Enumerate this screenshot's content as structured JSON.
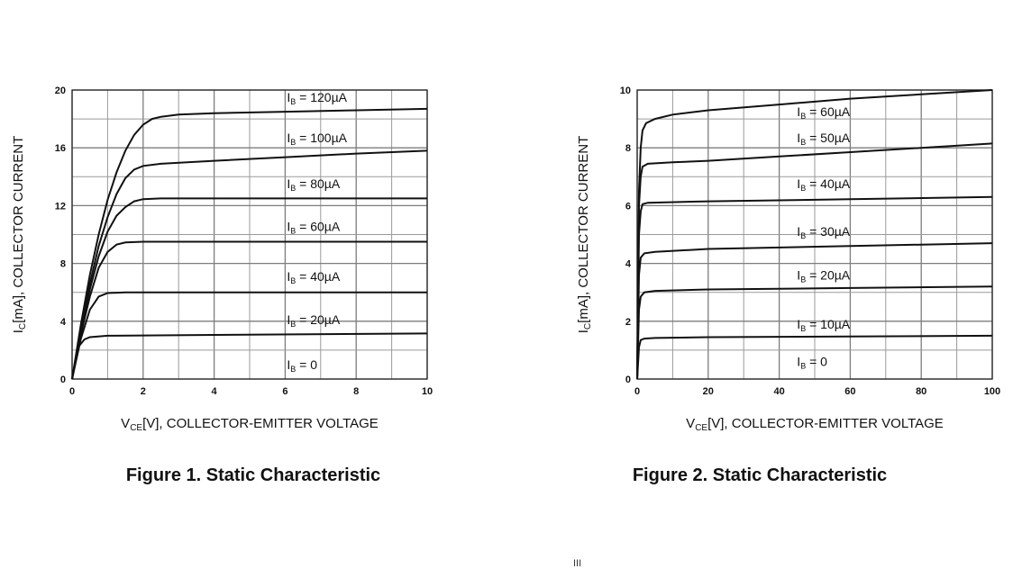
{
  "chart_data": [
    {
      "type": "line",
      "caption": "Figure 1. Static Characteristic",
      "ylabel": {
        "pre": "I",
        "sub": "C",
        "post": "[mA], COLLECTOR CURRENT"
      },
      "xlabel": {
        "pre": "V",
        "sub": "CE",
        "post": "[V], COLLECTOR-EMITTER VOLTAGE"
      },
      "xlim": [
        0,
        10
      ],
      "ylim": [
        0,
        20
      ],
      "xticks": [
        0,
        2,
        4,
        6,
        8,
        10
      ],
      "yticks": [
        0,
        4,
        8,
        12,
        16,
        20
      ],
      "x_minor_step": 1,
      "y_minor_step": 2,
      "grid": true,
      "series": [
        {
          "name": "I_B = 120µA",
          "label": {
            "pre": "I",
            "sub": "B",
            "post": " = 120µA"
          },
          "points": [
            [
              0,
              0
            ],
            [
              0.25,
              3.8
            ],
            [
              0.5,
              7.2
            ],
            [
              0.75,
              10.0
            ],
            [
              1.0,
              12.4
            ],
            [
              1.25,
              14.3
            ],
            [
              1.5,
              15.8
            ],
            [
              1.75,
              16.9
            ],
            [
              2.0,
              17.6
            ],
            [
              2.25,
              18.0
            ],
            [
              2.5,
              18.15
            ],
            [
              3.0,
              18.3
            ],
            [
              4.0,
              18.4
            ],
            [
              6.0,
              18.5
            ],
            [
              8.0,
              18.6
            ],
            [
              10.0,
              18.7
            ]
          ]
        },
        {
          "name": "I_B = 100µA",
          "label": {
            "pre": "I",
            "sub": "B",
            "post": " = 100µA"
          },
          "points": [
            [
              0,
              0
            ],
            [
              0.25,
              3.5
            ],
            [
              0.5,
              6.6
            ],
            [
              0.75,
              9.2
            ],
            [
              1.0,
              11.2
            ],
            [
              1.25,
              12.8
            ],
            [
              1.5,
              13.9
            ],
            [
              1.75,
              14.5
            ],
            [
              2.0,
              14.75
            ],
            [
              2.5,
              14.9
            ],
            [
              4.0,
              15.1
            ],
            [
              6.0,
              15.35
            ],
            [
              8.0,
              15.6
            ],
            [
              10.0,
              15.8
            ]
          ]
        },
        {
          "name": "I_B = 80µA",
          "label": {
            "pre": "I",
            "sub": "B",
            "post": " = 80µA"
          },
          "points": [
            [
              0,
              0
            ],
            [
              0.25,
              3.3
            ],
            [
              0.5,
              6.2
            ],
            [
              0.75,
              8.5
            ],
            [
              1.0,
              10.2
            ],
            [
              1.25,
              11.3
            ],
            [
              1.5,
              11.9
            ],
            [
              1.75,
              12.3
            ],
            [
              2.0,
              12.45
            ],
            [
              2.5,
              12.5
            ],
            [
              4.0,
              12.5
            ],
            [
              10.0,
              12.5
            ]
          ]
        },
        {
          "name": "I_B = 60µA",
          "label": {
            "pre": "I",
            "sub": "B",
            "post": " = 60µA"
          },
          "points": [
            [
              0,
              0
            ],
            [
              0.25,
              3.1
            ],
            [
              0.5,
              5.7
            ],
            [
              0.75,
              7.7
            ],
            [
              1.0,
              8.8
            ],
            [
              1.25,
              9.3
            ],
            [
              1.5,
              9.45
            ],
            [
              2.0,
              9.5
            ],
            [
              10.0,
              9.5
            ]
          ]
        },
        {
          "name": "I_B = 40µA",
          "label": {
            "pre": "I",
            "sub": "B",
            "post": " = 40µA"
          },
          "points": [
            [
              0,
              0
            ],
            [
              0.25,
              2.8
            ],
            [
              0.5,
              4.8
            ],
            [
              0.75,
              5.7
            ],
            [
              1.0,
              5.95
            ],
            [
              1.5,
              6.0
            ],
            [
              10.0,
              6.0
            ]
          ]
        },
        {
          "name": "I_B = 20µA",
          "label": {
            "pre": "I",
            "sub": "B",
            "post": " = 20µA"
          },
          "points": [
            [
              0,
              0
            ],
            [
              0.1,
              1.4
            ],
            [
              0.2,
              2.3
            ],
            [
              0.35,
              2.75
            ],
            [
              0.5,
              2.9
            ],
            [
              1.0,
              3.0
            ],
            [
              4.0,
              3.05
            ],
            [
              10.0,
              3.15
            ]
          ]
        },
        {
          "name": "I_B = 0",
          "label": {
            "pre": "I",
            "sub": "B",
            "post": " = 0"
          },
          "points": []
        }
      ]
    },
    {
      "type": "line",
      "caption": "Figure 2. Static Characteristic",
      "ylabel": {
        "pre": "I",
        "sub": "C",
        "post": "[mA], COLLECTOR CURRENT"
      },
      "xlabel": {
        "pre": "V",
        "sub": "CE",
        "post": "[V], COLLECTOR-EMITTER VOLTAGE"
      },
      "xlim": [
        0,
        100
      ],
      "ylim": [
        0,
        10
      ],
      "xticks": [
        0,
        20,
        40,
        60,
        80,
        100
      ],
      "yticks": [
        0,
        2,
        4,
        6,
        8,
        10
      ],
      "x_minor_step": 10,
      "y_minor_step": 1,
      "grid": true,
      "series": [
        {
          "name": "I_B = 60µA",
          "label": {
            "pre": "I",
            "sub": "B",
            "post": " = 60µA"
          },
          "points": [
            [
              0,
              0
            ],
            [
              0.5,
              6.5
            ],
            [
              1.0,
              8.0
            ],
            [
              1.5,
              8.6
            ],
            [
              2.5,
              8.85
            ],
            [
              5,
              9.0
            ],
            [
              10,
              9.15
            ],
            [
              20,
              9.3
            ],
            [
              40,
              9.5
            ],
            [
              60,
              9.7
            ],
            [
              80,
              9.85
            ],
            [
              100,
              10.0
            ]
          ]
        },
        {
          "name": "I_B = 50µA",
          "label": {
            "pre": "I",
            "sub": "B",
            "post": " = 50µA"
          },
          "points": [
            [
              0,
              0
            ],
            [
              0.5,
              6.0
            ],
            [
              1.0,
              7.0
            ],
            [
              1.5,
              7.35
            ],
            [
              3,
              7.45
            ],
            [
              10,
              7.5
            ],
            [
              20,
              7.55
            ],
            [
              40,
              7.7
            ],
            [
              60,
              7.85
            ],
            [
              80,
              8.0
            ],
            [
              100,
              8.15
            ]
          ]
        },
        {
          "name": "I_B = 40µA",
          "label": {
            "pre": "I",
            "sub": "B",
            "post": " = 40µA"
          },
          "points": [
            [
              0,
              0
            ],
            [
              0.5,
              5.0
            ],
            [
              1.0,
              5.8
            ],
            [
              1.5,
              6.05
            ],
            [
              3,
              6.1
            ],
            [
              20,
              6.15
            ],
            [
              60,
              6.22
            ],
            [
              100,
              6.3
            ]
          ]
        },
        {
          "name": "I_B = 30µA",
          "label": {
            "pre": "I",
            "sub": "B",
            "post": " = 30µA"
          },
          "points": [
            [
              0,
              0
            ],
            [
              0.5,
              3.6
            ],
            [
              1.0,
              4.2
            ],
            [
              2,
              4.35
            ],
            [
              5,
              4.4
            ],
            [
              20,
              4.5
            ],
            [
              60,
              4.6
            ],
            [
              100,
              4.7
            ]
          ]
        },
        {
          "name": "I_B = 20µA",
          "label": {
            "pre": "I",
            "sub": "B",
            "post": " = 20µA"
          },
          "points": [
            [
              0,
              0
            ],
            [
              0.5,
              2.4
            ],
            [
              1.0,
              2.85
            ],
            [
              2,
              3.0
            ],
            [
              5,
              3.05
            ],
            [
              20,
              3.1
            ],
            [
              60,
              3.15
            ],
            [
              100,
              3.2
            ]
          ]
        },
        {
          "name": "I_B = 10µA",
          "label": {
            "pre": "I",
            "sub": "B",
            "post": " = 10µA"
          },
          "points": [
            [
              0,
              0
            ],
            [
              0.5,
              1.1
            ],
            [
              1.0,
              1.35
            ],
            [
              2,
              1.4
            ],
            [
              5,
              1.42
            ],
            [
              20,
              1.45
            ],
            [
              100,
              1.5
            ]
          ]
        },
        {
          "name": "I_B = 0",
          "label": {
            "pre": "I",
            "sub": "B",
            "post": " = 0"
          },
          "points": []
        }
      ]
    }
  ],
  "footer_mark": "III"
}
